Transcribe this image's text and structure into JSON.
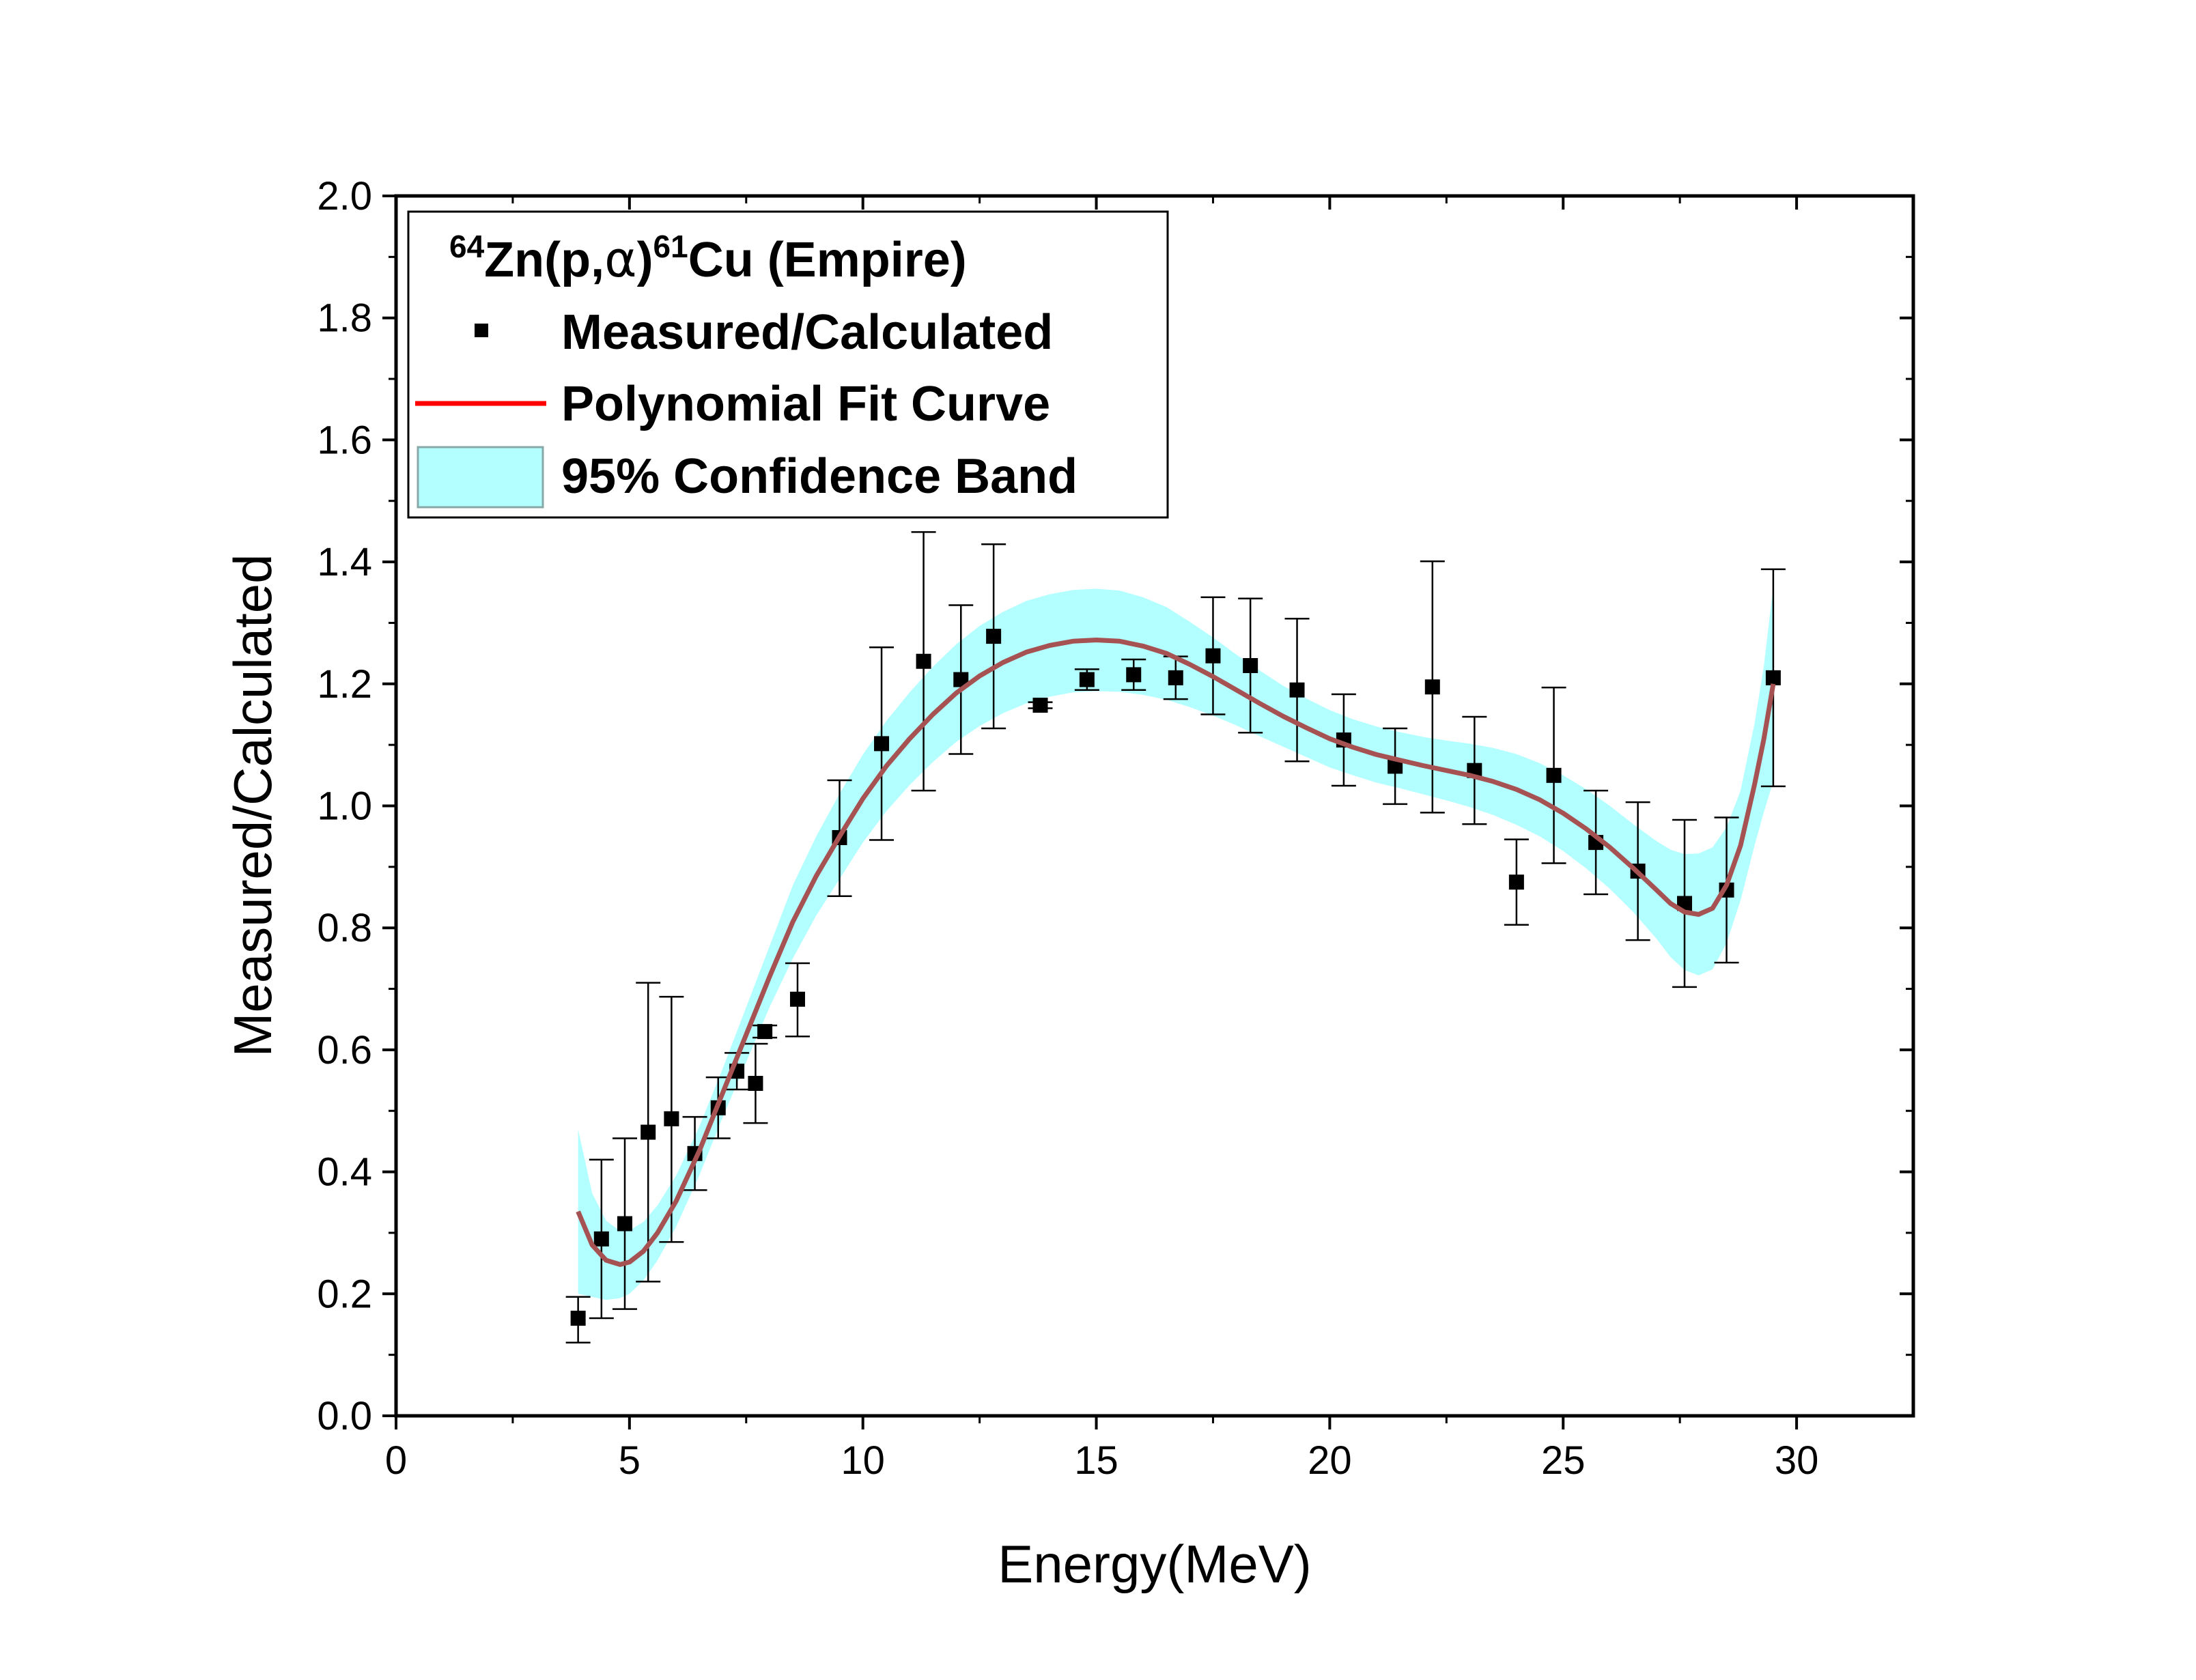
{
  "chart_data": {
    "type": "scatter",
    "title": "",
    "xlabel": "Energy(MeV)",
    "ylabel": "Measured/Calculated",
    "xlim": [
      0,
      32.5
    ],
    "ylim": [
      0,
      2.0
    ],
    "xticks": [
      0,
      5,
      10,
      15,
      20,
      25,
      30
    ],
    "xtick_labels": [
      "0",
      "5",
      "10",
      "15",
      "20",
      "25",
      "30"
    ],
    "yticks": [
      0.0,
      0.2,
      0.4,
      0.6,
      0.8,
      1.0,
      1.2,
      1.4,
      1.6,
      1.8,
      2.0
    ],
    "ytick_labels": [
      "0.0",
      "0.2",
      "0.4",
      "0.6",
      "0.8",
      "1.0",
      "1.2",
      "1.4",
      "1.6",
      "1.8",
      "2.0"
    ],
    "grid": false,
    "legend": {
      "placement": "top-left",
      "title_parts": {
        "sup1": "64",
        "main1": "Zn(p,",
        "alpha": "α",
        "main2": ")",
        "sup2": "61",
        "main3": "Cu (Empire)"
      },
      "entries": [
        {
          "label": "Measured/Calculated"
        },
        {
          "label": "Polynomial Fit Curve"
        },
        {
          "label": "95% Confidence Band"
        }
      ]
    },
    "colors": {
      "points": "#000000",
      "fit": "#FF0000",
      "fit_rendered": "#A65252",
      "band": "#B3FFFF",
      "axis": "#000000"
    },
    "series": [
      {
        "name": "Measured/Calculated",
        "type": "scatter_errorbars",
        "points": [
          {
            "x": 3.9,
            "y": 0.16,
            "lo": 0.12,
            "hi": 0.195
          },
          {
            "x": 4.4,
            "y": 0.29,
            "lo": 0.16,
            "hi": 0.42
          },
          {
            "x": 4.9,
            "y": 0.315,
            "lo": 0.175,
            "hi": 0.455
          },
          {
            "x": 5.4,
            "y": 0.465,
            "lo": 0.22,
            "hi": 0.71
          },
          {
            "x": 5.9,
            "y": 0.487,
            "lo": 0.285,
            "hi": 0.687
          },
          {
            "x": 6.4,
            "y": 0.43,
            "lo": 0.37,
            "hi": 0.49
          },
          {
            "x": 6.9,
            "y": 0.505,
            "lo": 0.455,
            "hi": 0.555
          },
          {
            "x": 7.3,
            "y": 0.565,
            "lo": 0.535,
            "hi": 0.595
          },
          {
            "x": 7.7,
            "y": 0.545,
            "lo": 0.48,
            "hi": 0.61
          },
          {
            "x": 7.9,
            "y": 0.63,
            "lo": 0.62,
            "hi": 0.64
          },
          {
            "x": 8.6,
            "y": 0.683,
            "lo": 0.622,
            "hi": 0.742
          },
          {
            "x": 9.5,
            "y": 0.948,
            "lo": 0.852,
            "hi": 1.042
          },
          {
            "x": 10.4,
            "y": 1.102,
            "lo": 0.944,
            "hi": 1.26
          },
          {
            "x": 11.3,
            "y": 1.237,
            "lo": 1.025,
            "hi": 1.449
          },
          {
            "x": 12.1,
            "y": 1.207,
            "lo": 1.085,
            "hi": 1.329
          },
          {
            "x": 12.8,
            "y": 1.278,
            "lo": 1.127,
            "hi": 1.429
          },
          {
            "x": 13.8,
            "y": 1.165,
            "lo": 1.16,
            "hi": 1.17
          },
          {
            "x": 14.8,
            "y": 1.207,
            "lo": 1.19,
            "hi": 1.224
          },
          {
            "x": 15.8,
            "y": 1.215,
            "lo": 1.19,
            "hi": 1.24
          },
          {
            "x": 16.7,
            "y": 1.21,
            "lo": 1.175,
            "hi": 1.245
          },
          {
            "x": 17.5,
            "y": 1.246,
            "lo": 1.15,
            "hi": 1.342
          },
          {
            "x": 18.3,
            "y": 1.23,
            "lo": 1.12,
            "hi": 1.34
          },
          {
            "x": 19.3,
            "y": 1.19,
            "lo": 1.073,
            "hi": 1.307
          },
          {
            "x": 20.3,
            "y": 1.108,
            "lo": 1.033,
            "hi": 1.183
          },
          {
            "x": 21.4,
            "y": 1.065,
            "lo": 1.003,
            "hi": 1.127
          },
          {
            "x": 22.2,
            "y": 1.195,
            "lo": 0.989,
            "hi": 1.401
          },
          {
            "x": 23.1,
            "y": 1.058,
            "lo": 0.97,
            "hi": 1.146
          },
          {
            "x": 24.0,
            "y": 0.875,
            "lo": 0.805,
            "hi": 0.945
          },
          {
            "x": 24.8,
            "y": 1.05,
            "lo": 0.906,
            "hi": 1.194
          },
          {
            "x": 25.7,
            "y": 0.94,
            "lo": 0.855,
            "hi": 1.025
          },
          {
            "x": 26.6,
            "y": 0.893,
            "lo": 0.78,
            "hi": 1.006
          },
          {
            "x": 27.6,
            "y": 0.84,
            "lo": 0.703,
            "hi": 0.977
          },
          {
            "x": 28.5,
            "y": 0.862,
            "lo": 0.743,
            "hi": 0.981
          },
          {
            "x": 29.5,
            "y": 1.21,
            "lo": 1.032,
            "hi": 1.388
          }
        ]
      },
      {
        "name": "Polynomial Fit Curve",
        "type": "line",
        "x": [
          3.9,
          4.2,
          4.5,
          4.8,
          5.0,
          5.3,
          5.6,
          6.0,
          6.5,
          7.0,
          7.5,
          8.0,
          8.5,
          9.0,
          9.5,
          10.0,
          10.5,
          11.0,
          11.5,
          12.0,
          12.5,
          13.0,
          13.5,
          14.0,
          14.5,
          15.0,
          15.5,
          16.0,
          16.5,
          17.0,
          17.5,
          18.0,
          18.5,
          19.0,
          19.5,
          20.0,
          20.5,
          21.0,
          21.5,
          22.0,
          22.5,
          23.0,
          23.5,
          24.0,
          24.5,
          25.0,
          25.5,
          26.0,
          26.5,
          27.0,
          27.3,
          27.6,
          27.9,
          28.2,
          28.5,
          28.8,
          29.1,
          29.3,
          29.5
        ],
        "y": [
          0.335,
          0.28,
          0.255,
          0.248,
          0.252,
          0.27,
          0.3,
          0.352,
          0.435,
          0.53,
          0.625,
          0.72,
          0.81,
          0.885,
          0.95,
          1.012,
          1.065,
          1.11,
          1.15,
          1.185,
          1.213,
          1.235,
          1.252,
          1.263,
          1.27,
          1.272,
          1.27,
          1.262,
          1.25,
          1.232,
          1.212,
          1.19,
          1.168,
          1.147,
          1.128,
          1.11,
          1.096,
          1.084,
          1.075,
          1.066,
          1.058,
          1.05,
          1.04,
          1.027,
          1.01,
          0.988,
          0.962,
          0.932,
          0.898,
          0.862,
          0.84,
          0.826,
          0.822,
          0.832,
          0.87,
          0.935,
          1.035,
          1.11,
          1.2
        ]
      },
      {
        "name": "95% Confidence Band",
        "type": "band",
        "x": [
          3.9,
          4.2,
          4.5,
          4.8,
          5.0,
          5.3,
          5.6,
          6.0,
          6.5,
          7.0,
          7.5,
          8.0,
          8.5,
          9.0,
          9.5,
          10.0,
          10.5,
          11.0,
          11.5,
          12.0,
          12.5,
          13.0,
          13.5,
          14.0,
          14.5,
          15.0,
          15.5,
          16.0,
          16.5,
          17.0,
          17.5,
          18.0,
          18.5,
          19.0,
          19.5,
          20.0,
          20.5,
          21.0,
          21.5,
          22.0,
          22.5,
          23.0,
          23.5,
          24.0,
          24.5,
          25.0,
          25.5,
          26.0,
          26.5,
          27.0,
          27.3,
          27.6,
          27.9,
          28.2,
          28.5,
          28.8,
          29.1,
          29.3,
          29.5
        ],
        "halfwidth": [
          0.135,
          0.085,
          0.065,
          0.055,
          0.052,
          0.048,
          0.045,
          0.042,
          0.04,
          0.04,
          0.045,
          0.05,
          0.06,
          0.065,
          0.07,
          0.072,
          0.074,
          0.076,
          0.078,
          0.08,
          0.082,
          0.083,
          0.084,
          0.084,
          0.084,
          0.084,
          0.083,
          0.08,
          0.076,
          0.07,
          0.064,
          0.058,
          0.054,
          0.05,
          0.048,
          0.047,
          0.046,
          0.046,
          0.046,
          0.047,
          0.049,
          0.052,
          0.055,
          0.058,
          0.06,
          0.062,
          0.065,
          0.068,
          0.072,
          0.08,
          0.088,
          0.095,
          0.1,
          0.1,
          0.095,
          0.09,
          0.1,
          0.12,
          0.16
        ]
      }
    ]
  }
}
